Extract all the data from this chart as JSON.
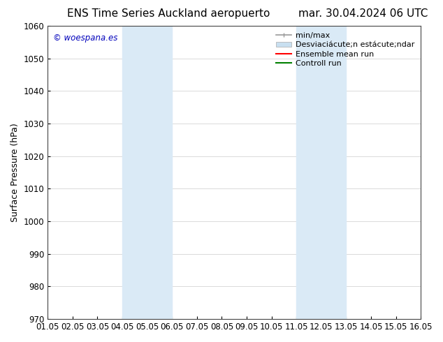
{
  "title_left": "ENS Time Series Auckland aeropuerto",
  "title_right": "mar. 30.04.2024 06 UTC",
  "ylabel": "Surface Pressure (hPa)",
  "watermark": "© woespana.es",
  "watermark_color": "#0000bb",
  "ylim": [
    970,
    1060
  ],
  "yticks": [
    970,
    980,
    990,
    1000,
    1010,
    1020,
    1030,
    1040,
    1050,
    1060
  ],
  "xtick_labels": [
    "01.05",
    "02.05",
    "03.05",
    "04.05",
    "05.05",
    "06.05",
    "07.05",
    "08.05",
    "09.05",
    "10.05",
    "11.05",
    "12.05",
    "13.05",
    "14.05",
    "15.05",
    "16.05"
  ],
  "xlim": [
    0,
    15
  ],
  "shaded_regions": [
    {
      "xmin": 3.0,
      "xmax": 5.0,
      "color": "#daeaf6"
    },
    {
      "xmin": 10.0,
      "xmax": 12.0,
      "color": "#daeaf6"
    }
  ],
  "legend_label_minmax": "min/max",
  "legend_label_std": "Desviaciácute;n estácute;ndar",
  "legend_label_ensemble": "Ensemble mean run",
  "legend_label_control": "Controll run",
  "legend_color_minmax": "#999999",
  "legend_color_std": "#c8dff0",
  "legend_color_ensemble": "#ff0000",
  "legend_color_control": "#008000",
  "bg_color": "#ffffff",
  "plot_bg_color": "#ffffff",
  "grid_color": "#cccccc",
  "title_fontsize": 11,
  "tick_fontsize": 8.5,
  "label_fontsize": 9,
  "legend_fontsize": 8
}
